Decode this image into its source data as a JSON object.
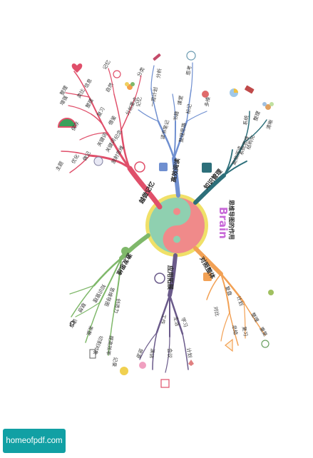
{
  "title": {
    "brain": "Brain",
    "subtitle": "思维导图的作用"
  },
  "colors": {
    "red": "#e04f6a",
    "blue": "#6f8fd0",
    "teal": "#2d6f7a",
    "orange": "#f2a155",
    "purple": "#6a5a8a",
    "green": "#7fb86a",
    "yin_green": "#8fd0b0",
    "yin_red": "#f08a8a",
    "ring": "#f0e068"
  },
  "branches": {
    "red": {
      "main": "越做记忆",
      "l1": [
        "放射思维",
        "关键词",
        "做记",
        "主题"
      ],
      "l2": [
        "分析",
        "纪念",
        "借鉴",
        "关键词",
        "重点",
        "自然",
        "复习",
        "整理",
        "保存",
        "类比",
        "增强",
        "优化"
      ],
      "l3": [
        "记忆",
        "分类",
        "整理",
        "信息",
        "改进",
        "复习",
        "主旨",
        "记忆",
        "回忆",
        "条目",
        "问题",
        "总结"
      ]
    },
    "blue": {
      "main": "高效阅读",
      "l1": [
        "读书笔记",
        "整理思路",
        "标记"
      ],
      "l2": [
        "书籍",
        "课堂",
        "一周计划",
        "分析",
        "思考",
        "记忆"
      ],
      "l3": [
        "多维",
        "加深",
        "知识",
        "信息"
      ]
    },
    "teal": {
      "main": "知识管理",
      "l1": [
        "高效阅读",
        "系统思维",
        "结构化"
      ],
      "l2": [
        "系统",
        "整理",
        "清晰"
      ]
    },
    "orange": {
      "main": "对照整体",
      "l1": [
        "复盘",
        "计划"
      ],
      "l2": [
        "整理",
        "复习",
        "总结",
        "重复",
        "对比",
        "提升"
      ]
    },
    "purple": {
      "main": "应用拓展",
      "l1": [
        "工作",
        "生活",
        "学习"
      ],
      "l2": [
        "演讲",
        "会议",
        "计划",
        "旅游",
        "项目",
        "清单"
      ]
    },
    "green": {
      "main": "激发思维",
      "l1": [
        "知识管理",
        "思维导图",
        "创造力",
        "越做记忆"
      ],
      "l2": [
        "联想",
        "语言",
        "发散",
        "切割对象",
        "提高效率",
        "记录",
        "灵感",
        "认识",
        "激发"
      ]
    }
  },
  "watermark": "homeofpdf.com"
}
